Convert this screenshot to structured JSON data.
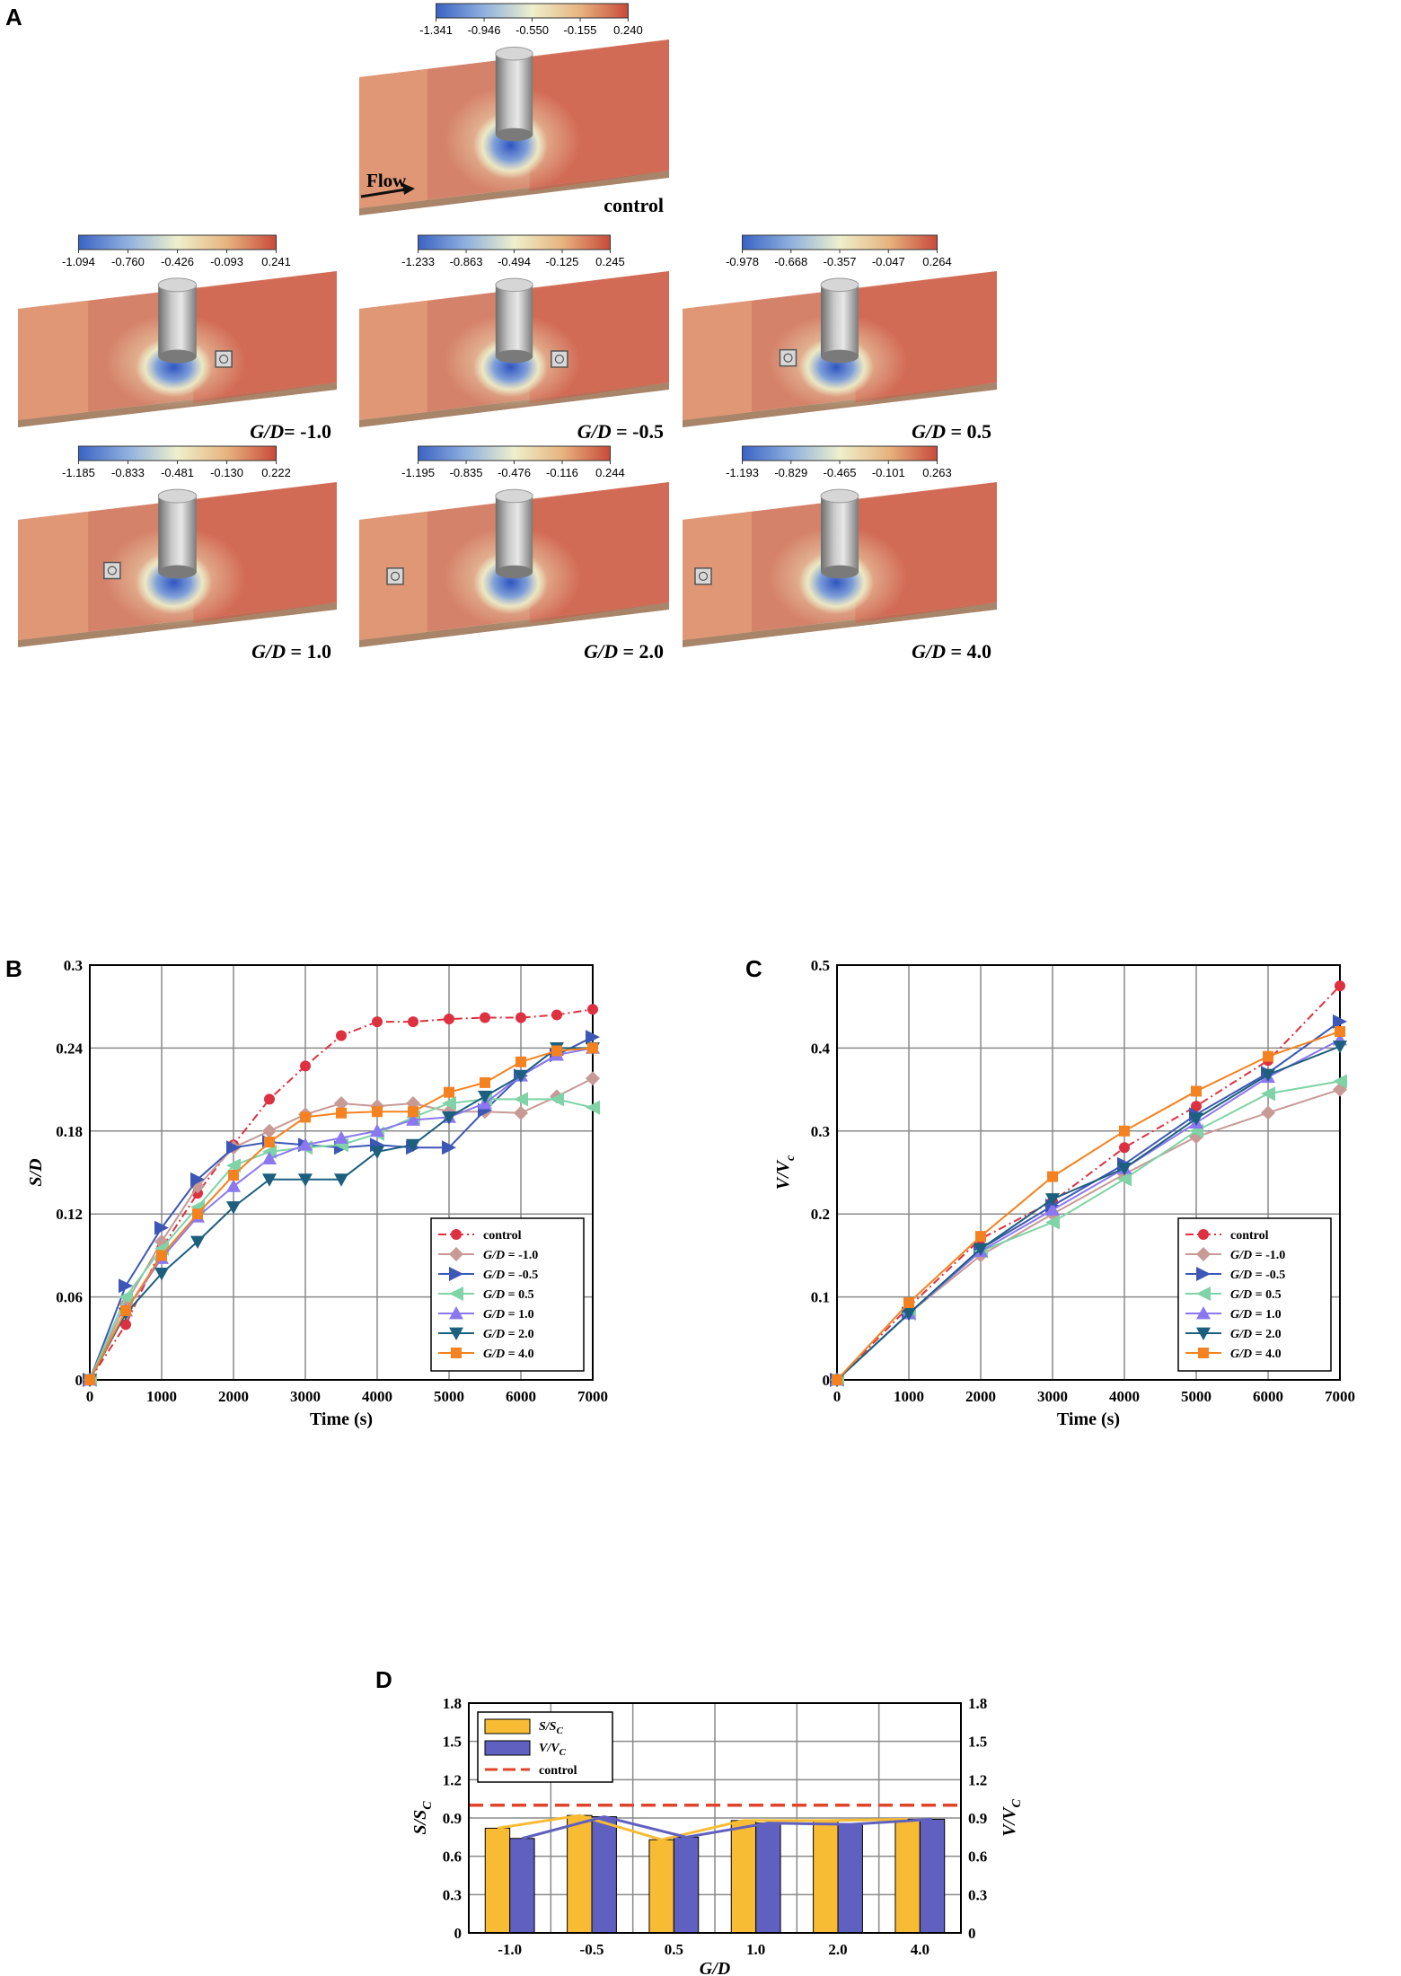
{
  "panel_letters": {
    "a": "A",
    "b": "B",
    "c": "C",
    "d": "D"
  },
  "flow_label": "Flow",
  "colors": {
    "cmap": [
      "#3a63c4",
      "#8fb0de",
      "#eef0cc",
      "#e6b47f",
      "#c84a3a"
    ],
    "control": "#dd3040",
    "gd_m1": "#c79a96",
    "gd_m05": "#3c57b5",
    "gd_05": "#7fd3a6",
    "gd_1": "#8b78f0",
    "gd_2": "#1d5f7e",
    "gd_4": "#f58220",
    "bar_s": "#f7bc33",
    "bar_v": "#6060c0",
    "control_line": "#e0442a"
  },
  "contour_panels": [
    {
      "key": "control",
      "label": "control",
      "ticks": [
        "-1.341",
        "-0.946",
        "-0.550",
        "-0.155",
        "0.240"
      ],
      "cube": "none"
    },
    {
      "key": "m1",
      "label_var": "G/D",
      "label_val": "= -1.0",
      "ticks": [
        "-1.094",
        "-0.760",
        "-0.426",
        "-0.093",
        "0.241"
      ],
      "cube": "downstream"
    },
    {
      "key": "m05",
      "label_var": "G/D",
      "label_val": " = -0.5",
      "ticks": [
        "-1.233",
        "-0.863",
        "-0.494",
        "-0.125",
        "0.245"
      ],
      "cube": "downstream"
    },
    {
      "key": "p05",
      "label_var": "G/D",
      "label_val": " = 0.5",
      "ticks": [
        "-0.978",
        "-0.668",
        "-0.357",
        "-0.047",
        "0.264"
      ],
      "cube": "upstream-near"
    },
    {
      "key": "p1",
      "label_var": "G/D",
      "label_val": " = 1.0",
      "ticks": [
        "-1.185",
        "-0.833",
        "-0.481",
        "-0.130",
        "0.222"
      ],
      "cube": "upstream"
    },
    {
      "key": "p2",
      "label_var": "G/D",
      "label_val": " = 2.0",
      "ticks": [
        "-1.195",
        "-0.835",
        "-0.476",
        "-0.116",
        "0.244"
      ],
      "cube": "upstream-far"
    },
    {
      "key": "p4",
      "label_var": "G/D",
      "label_val": " = 4.0",
      "ticks": [
        "-1.193",
        "-0.829",
        "-0.465",
        "-0.101",
        "0.263"
      ],
      "cube": "upstream-farthest"
    }
  ],
  "chart_data": [
    {
      "id": "B",
      "type": "line",
      "xlabel": "Time (s)",
      "ylabel": "S/D",
      "xlim": [
        0,
        7000
      ],
      "ylim": [
        0,
        0.3
      ],
      "xticks": [
        0,
        1000,
        2000,
        3000,
        4000,
        5000,
        6000,
        7000
      ],
      "yticks": [
        "0",
        "0.06",
        "0.12",
        "0.18",
        "0.24",
        "0.3"
      ],
      "ytick_values": [
        0,
        0.06,
        0.12,
        0.18,
        0.24,
        0.3
      ],
      "grid": true,
      "legend": "lower-right",
      "x": [
        0,
        500,
        1000,
        1500,
        2000,
        2500,
        3000,
        3500,
        4000,
        4500,
        5000,
        5500,
        6000,
        6500,
        7000
      ],
      "series": [
        {
          "name": "control",
          "color": "control",
          "marker": "circle",
          "dash": true,
          "values": [
            0,
            0.04,
            0.095,
            0.135,
            0.17,
            0.203,
            0.227,
            0.249,
            0.259,
            0.259,
            0.261,
            0.262,
            0.262,
            0.264,
            0.268
          ]
        },
        {
          "name_var": "G/D",
          "name_val": " = -1.0",
          "color": "gd_m1",
          "marker": "diamond",
          "values": [
            0,
            0.055,
            0.1,
            0.14,
            0.168,
            0.18,
            0.192,
            0.2,
            0.198,
            0.2,
            0.194,
            0.194,
            0.193,
            0.205,
            0.218
          ]
        },
        {
          "name_var": "G/D",
          "name_val": " = -0.5",
          "color": "gd_m05",
          "marker": "tri-right",
          "values": [
            0,
            0.068,
            0.11,
            0.145,
            0.168,
            0.172,
            0.17,
            0.168,
            0.17,
            0.168,
            0.168,
            0.195,
            0.22,
            0.235,
            0.248
          ]
        },
        {
          "name_var": "G/D",
          "name_val": " = 0.5",
          "color": "gd_05",
          "marker": "tri-left",
          "values": [
            0,
            0.06,
            0.095,
            0.125,
            0.155,
            0.165,
            0.168,
            0.17,
            0.178,
            0.19,
            0.2,
            0.203,
            0.203,
            0.203,
            0.197
          ]
        },
        {
          "name_var": "G/D",
          "name_val": " = 1.0",
          "color": "gd_1",
          "marker": "tri-up",
          "values": [
            0,
            0.05,
            0.088,
            0.118,
            0.14,
            0.16,
            0.17,
            0.175,
            0.18,
            0.188,
            0.19,
            0.2,
            0.22,
            0.235,
            0.24
          ]
        },
        {
          "name_var": "G/D",
          "name_val": " = 2.0",
          "color": "gd_2",
          "marker": "tri-down",
          "values": [
            0,
            0.048,
            0.077,
            0.1,
            0.125,
            0.145,
            0.145,
            0.145,
            0.165,
            0.17,
            0.19,
            0.205,
            0.22,
            0.24,
            0.24
          ]
        },
        {
          "name_var": "G/D",
          "name_val": " = 4.0",
          "color": "gd_4",
          "marker": "square",
          "values": [
            0,
            0.05,
            0.09,
            0.12,
            0.148,
            0.172,
            0.19,
            0.193,
            0.194,
            0.194,
            0.208,
            0.215,
            0.23,
            0.238,
            0.24
          ]
        }
      ]
    },
    {
      "id": "C",
      "type": "line",
      "xlabel": "Time (s)",
      "ylabel_main": "V/V",
      "ylabel_sub": "c",
      "xlim": [
        0,
        7000
      ],
      "ylim": [
        0,
        0.5
      ],
      "xticks": [
        0,
        1000,
        2000,
        3000,
        4000,
        5000,
        6000,
        7000
      ],
      "yticks": [
        "0",
        "0.1",
        "0.2",
        "0.3",
        "0.4",
        "0.5"
      ],
      "ytick_values": [
        0,
        0.1,
        0.2,
        0.3,
        0.4,
        0.5
      ],
      "grid": true,
      "legend": "lower-right",
      "x": [
        0,
        1000,
        2000,
        3000,
        4000,
        5000,
        6000,
        7000
      ],
      "series": [
        {
          "name": "control",
          "color": "control",
          "marker": "circle",
          "dash": true,
          "values": [
            0,
            0.088,
            0.17,
            0.215,
            0.28,
            0.33,
            0.385,
            0.475
          ]
        },
        {
          "name_var": "G/D",
          "name_val": " = -1.0",
          "color": "gd_m1",
          "marker": "diamond",
          "values": [
            0,
            0.08,
            0.15,
            0.2,
            0.248,
            0.293,
            0.322,
            0.35
          ]
        },
        {
          "name_var": "G/D",
          "name_val": " = -0.5",
          "color": "gd_m05",
          "marker": "tri-right",
          "values": [
            0,
            0.08,
            0.158,
            0.21,
            0.26,
            0.32,
            0.37,
            0.432
          ]
        },
        {
          "name_var": "G/D",
          "name_val": " = 0.5",
          "color": "gd_05",
          "marker": "tri-left",
          "values": [
            0,
            0.08,
            0.155,
            0.19,
            0.242,
            0.3,
            0.345,
            0.36
          ]
        },
        {
          "name_var": "G/D",
          "name_val": " = 1.0",
          "color": "gd_1",
          "marker": "tri-up",
          "values": [
            0,
            0.08,
            0.155,
            0.205,
            0.255,
            0.31,
            0.365,
            0.41
          ]
        },
        {
          "name_var": "G/D",
          "name_val": " = 2.0",
          "color": "gd_2",
          "marker": "tri-down",
          "values": [
            0,
            0.08,
            0.158,
            0.218,
            0.255,
            0.315,
            0.368,
            0.402
          ]
        },
        {
          "name_var": "G/D",
          "name_val": " = 4.0",
          "color": "gd_4",
          "marker": "square",
          "values": [
            0,
            0.093,
            0.173,
            0.245,
            0.3,
            0.348,
            0.39,
            0.42
          ]
        }
      ]
    },
    {
      "id": "D",
      "type": "bar",
      "xlabel": "G/D",
      "ylabel_left_main": "S/S",
      "ylabel_left_sub": "C",
      "ylabel_right_main": "V/V",
      "ylabel_right_sub": "C",
      "categories": [
        "-1.0",
        "-0.5",
        "0.5",
        "1.0",
        "2.0",
        "4.0"
      ],
      "ylim": [
        0,
        1.8
      ],
      "yticks": [
        "0",
        "0.3",
        "0.6",
        "0.9",
        "1.2",
        "1.5",
        "1.8"
      ],
      "ytick_values": [
        0,
        0.3,
        0.6,
        0.9,
        1.2,
        1.5,
        1.8
      ],
      "grid": true,
      "legend": "top-left",
      "control_level": 1.0,
      "series": [
        {
          "name_main": "S/S",
          "name_sub": "C",
          "color": "bar_s",
          "values": [
            0.82,
            0.92,
            0.73,
            0.88,
            0.88,
            0.89
          ]
        },
        {
          "name_main": "V/V",
          "name_sub": "C",
          "color": "bar_v",
          "values": [
            0.74,
            0.91,
            0.75,
            0.86,
            0.85,
            0.89
          ]
        }
      ],
      "control_name": "control"
    }
  ]
}
